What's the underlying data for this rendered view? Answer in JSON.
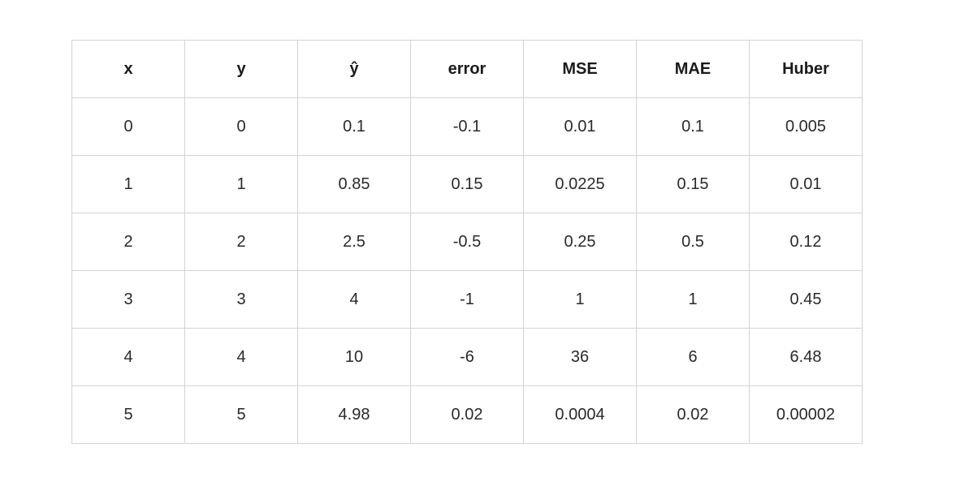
{
  "table": {
    "headers": [
      "x",
      "y",
      "ŷ",
      "error",
      "MSE",
      "MAE",
      "Huber"
    ],
    "rows": [
      [
        "0",
        "0",
        "0.1",
        "-0.1",
        "0.01",
        "0.1",
        "0.005"
      ],
      [
        "1",
        "1",
        "0.85",
        "0.15",
        "0.0225",
        "0.15",
        "0.01"
      ],
      [
        "2",
        "2",
        "2.5",
        "-0.5",
        "0.25",
        "0.5",
        "0.12"
      ],
      [
        "3",
        "3",
        "4",
        "-1",
        "1",
        "1",
        "0.45"
      ],
      [
        "4",
        "4",
        "10",
        "-6",
        "36",
        "6",
        "6.48"
      ],
      [
        "5",
        "5",
        "4.98",
        "0.02",
        "0.0004",
        "0.02",
        "0.00002"
      ]
    ]
  },
  "colors": {
    "border": "#d3d3d3",
    "text": "#1f1f1f",
    "background": "#ffffff"
  }
}
